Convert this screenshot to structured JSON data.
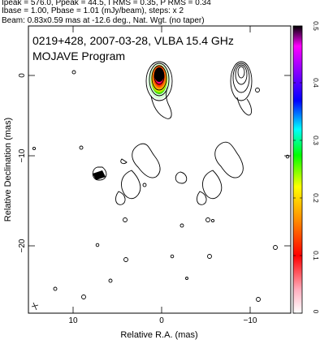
{
  "header": {
    "line1": "Ipeak = 576.0, Ppeak = 44.5, I RMS = 0.35, P RMS = 0.34",
    "line2": "Ibase = 1.00, Pbase = 1.01 (mJy/beam), steps: x 2",
    "line3": "Beam: 0.83x0.59 mas at -12.6 deg., Nat. Wgt. (no taper)"
  },
  "plot": {
    "title": "0219+428, 2007-03-28, VLBA 15.4 GHz",
    "subtitle": "MOJAVE Program",
    "xlabel": "Relative R.A. (mas)",
    "ylabel": "Relative Declination (mas)",
    "xticks": [
      "10",
      "0",
      "−10"
    ],
    "yticks": [
      "0",
      "−10",
      "−20"
    ]
  },
  "colorbar": {
    "ticks": [
      "0.5",
      "0.4",
      "0.3",
      "0.2",
      "0.1",
      "0"
    ],
    "range": [
      0,
      0.5
    ],
    "colors": [
      "#ffffff",
      "#ffb0c0",
      "#ff0000",
      "#ff8800",
      "#ffff00",
      "#00ff00",
      "#00ffff",
      "#0000ff",
      "#8800ff",
      "#ff00ff",
      "#000000"
    ]
  }
}
